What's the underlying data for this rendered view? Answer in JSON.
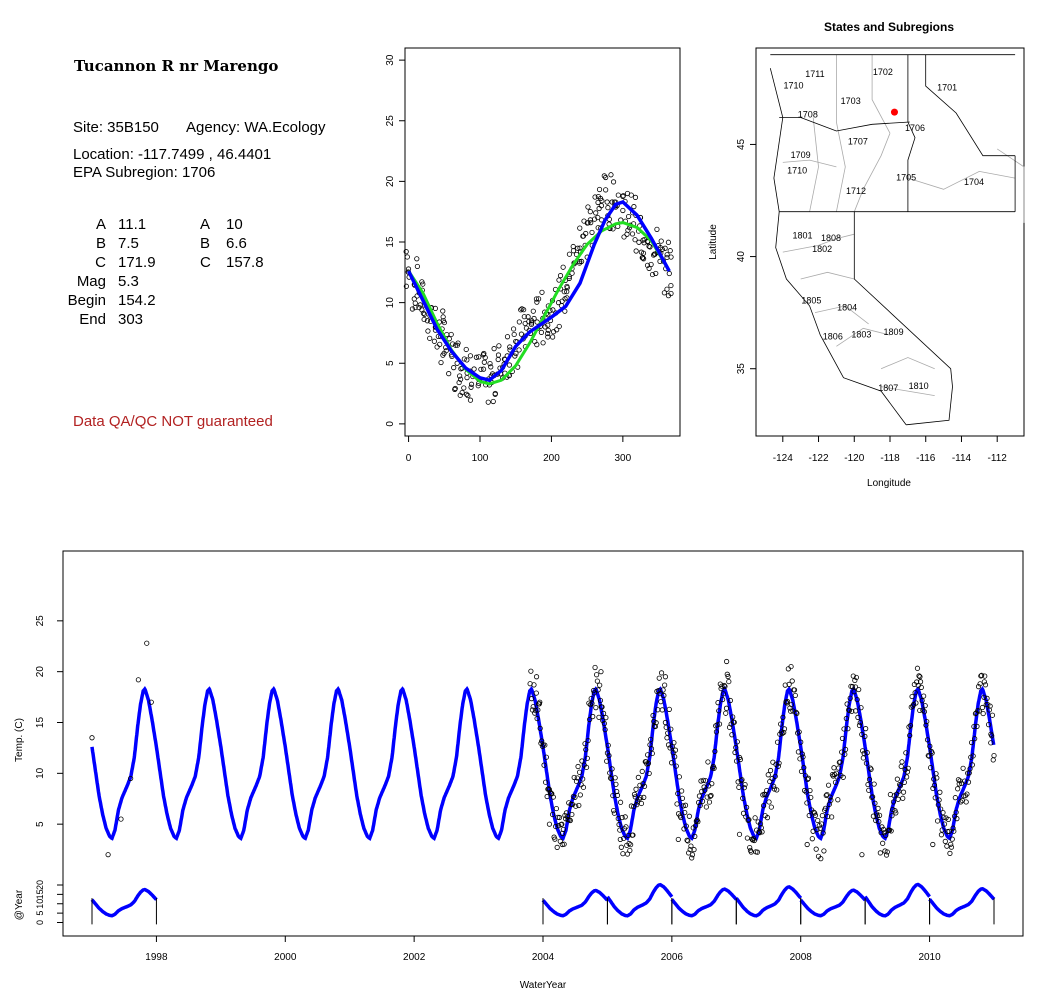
{
  "info": {
    "site_name": "Tucannon R nr Marengo",
    "site_line": "Site: 35B150",
    "agency_line": "Agency: WA.Ecology",
    "location_line": "Location: -117.7499 , 46.4401",
    "subregion_line": "EPA Subregion: 1706",
    "params_left": [
      {
        "label": "A",
        "value": "11.1"
      },
      {
        "label": "B",
        "value": "7.5"
      },
      {
        "label": "C",
        "value": "171.9"
      },
      {
        "label": "Mag",
        "value": "5.3"
      },
      {
        "label": "Begin",
        "value": "154.2"
      },
      {
        "label": "End",
        "value": "303"
      }
    ],
    "params_right": [
      {
        "label": "A",
        "value": "10"
      },
      {
        "label": "B",
        "value": "6.6"
      },
      {
        "label": "C",
        "value": "157.8"
      }
    ],
    "disclaimer": "Data QA/QC NOT guaranteed",
    "disclaimer_color": "#b22222"
  },
  "colors": {
    "fit": "#0000ff",
    "alt_fit": "#22dd22",
    "points": "#000000",
    "site_marker": "#ff0000",
    "region_lines": "#aaaaaa"
  },
  "chart_data": [
    {
      "type": "scatter",
      "xlabel": "",
      "ylabel": "",
      "xlim": [
        -5,
        380
      ],
      "ylim": [
        -1,
        31
      ],
      "xticks": [
        0,
        100,
        200,
        300
      ],
      "yticks": [
        0,
        5,
        10,
        15,
        20,
        25,
        30
      ],
      "series": [
        {
          "kind": "points",
          "x": [
            0,
            8,
            15,
            22,
            30,
            38,
            45,
            52,
            60,
            68,
            75,
            82,
            90,
            98,
            105,
            112,
            120,
            128,
            135,
            142,
            150,
            158,
            165,
            172,
            180,
            188,
            195,
            202,
            210,
            218,
            225,
            232,
            240,
            248,
            255,
            262,
            270,
            278,
            285,
            292,
            300,
            308,
            315,
            322,
            330,
            338,
            345,
            352,
            360,
            365
          ],
          "y": [
            12.5,
            11.5,
            10.8,
            9.8,
            8.9,
            8.0,
            7.2,
            6.3,
            5.7,
            5.0,
            4.6,
            4.2,
            3.9,
            3.7,
            3.6,
            3.7,
            4.0,
            4.6,
            5.3,
            6.1,
            6.8,
            7.4,
            7.9,
            8.2,
            8.4,
            8.7,
            9.0,
            9.4,
            10.0,
            10.9,
            12.0,
            13.2,
            14.5,
            15.7,
            16.6,
            17.4,
            18.0,
            18.3,
            18.3,
            18.0,
            17.6,
            17.1,
            16.5,
            15.9,
            15.2,
            14.6,
            14.0,
            13.4,
            12.8,
            12.4
          ]
        },
        {
          "kind": "fit",
          "x": [
            0,
            20,
            40,
            60,
            80,
            100,
            113,
            130,
            150,
            170,
            180,
            200,
            220,
            240,
            260,
            275,
            290,
            300,
            320,
            340,
            365
          ],
          "y": [
            12.6,
            10.2,
            7.8,
            6.0,
            4.6,
            3.8,
            3.6,
            4.4,
            6.4,
            7.6,
            8.0,
            8.8,
            9.7,
            11.6,
            14.8,
            16.8,
            18.1,
            18.3,
            17.2,
            15.3,
            12.6
          ]
        },
        {
          "kind": "alt_fit",
          "x": [
            0,
            20,
            40,
            60,
            80,
            100,
            113,
            130,
            150,
            170,
            190,
            210,
            230,
            250,
            270,
            290,
            300,
            320,
            340,
            365
          ],
          "y": [
            12.6,
            10.8,
            8.3,
            6.1,
            4.5,
            3.5,
            3.3,
            3.6,
            4.8,
            6.7,
            8.9,
            11.1,
            13.1,
            14.8,
            15.9,
            16.5,
            16.6,
            16.2,
            15.1,
            12.6
          ]
        }
      ]
    },
    {
      "type": "map",
      "title": "States and Subregions",
      "xlabel": "Longitude",
      "ylabel": "Latitude",
      "xlim": [
        -125.5,
        -110.5
      ],
      "ylim": [
        32,
        49.3
      ],
      "xticks": [
        -124,
        -122,
        -120,
        -118,
        -116,
        -114,
        -112
      ],
      "yticks": [
        35,
        40,
        45
      ],
      "site": {
        "lon": -117.7499,
        "lat": 46.4401
      },
      "regions": [
        {
          "label": "1702",
          "lon": -118.4,
          "lat": 48.1
        },
        {
          "label": "1711",
          "lon": -122.2,
          "lat": 48.0
        },
        {
          "label": "1710",
          "lon": -123.4,
          "lat": 47.5
        },
        {
          "label": "1701",
          "lon": -114.8,
          "lat": 47.4
        },
        {
          "label": "1703",
          "lon": -120.2,
          "lat": 46.8
        },
        {
          "label": "1708",
          "lon": -122.6,
          "lat": 46.2
        },
        {
          "label": "1706",
          "lon": -116.6,
          "lat": 45.6
        },
        {
          "label": "1707",
          "lon": -119.8,
          "lat": 45.0
        },
        {
          "label": "1709",
          "lon": -123.0,
          "lat": 44.4
        },
        {
          "label": "1710",
          "lon": -123.2,
          "lat": 43.7
        },
        {
          "label": "1705",
          "lon": -117.1,
          "lat": 43.4
        },
        {
          "label": "1704",
          "lon": -113.3,
          "lat": 43.2
        },
        {
          "label": "1712",
          "lon": -119.9,
          "lat": 42.8
        },
        {
          "label": "1801",
          "lon": -122.9,
          "lat": 40.8
        },
        {
          "label": "1808",
          "lon": -121.3,
          "lat": 40.7
        },
        {
          "label": "1802",
          "lon": -121.8,
          "lat": 40.2
        },
        {
          "label": "1805",
          "lon": -122.4,
          "lat": 37.9
        },
        {
          "label": "1804",
          "lon": -120.4,
          "lat": 37.6
        },
        {
          "label": "1806",
          "lon": -121.2,
          "lat": 36.3
        },
        {
          "label": "1803",
          "lon": -119.6,
          "lat": 36.4
        },
        {
          "label": "1809",
          "lon": -117.8,
          "lat": 36.5
        },
        {
          "label": "1810",
          "lon": -116.4,
          "lat": 34.1
        },
        {
          "label": "1807",
          "lon": -118.1,
          "lat": 34.0
        }
      ]
    },
    {
      "type": "line",
      "xlabel": "",
      "ylabel": "Temp. (C)",
      "xlim": [
        1996.55,
        2011.45
      ],
      "ylim": [
        0,
        30
      ],
      "xticks": [
        1998,
        2000,
        2002,
        2004,
        2006,
        2008,
        2010
      ],
      "yticks": [
        5,
        10,
        15,
        20,
        25
      ],
      "series": [
        {
          "kind": "fit",
          "x_start": 1997.0,
          "x_end": 2011.0
        },
        {
          "kind": "points",
          "x": [
            1997.0,
            1997.25,
            1997.45,
            1997.6,
            1997.72,
            1997.85,
            1997.92,
            2003.9,
            2003.95,
            2004.1,
            2004.3,
            2004.9,
            2005.2,
            2005.9,
            2006.1,
            2006.85,
            2007.05,
            2007.85,
            2008.1,
            2008.85,
            2008.95,
            2009.85,
            2010.05,
            2010.85,
            2010.95
          ],
          "y": [
            13.5,
            2.0,
            5.5,
            9.5,
            19.2,
            22.8,
            17.0,
            19.5,
            17.0,
            5.0,
            3.0,
            20.0,
            3.5,
            19.5,
            3.5,
            21.0,
            4.0,
            20.5,
            3.0,
            18.5,
            2.0,
            19.5,
            3.0,
            19.0,
            13.0
          ]
        }
      ]
    },
    {
      "type": "line",
      "xlabel": "WaterYear",
      "ylabel": "@Year",
      "xlim": [
        1996.55,
        2011.45
      ],
      "ylim": [
        -4,
        28
      ],
      "xticks": [
        1998,
        2000,
        2002,
        2004,
        2006,
        2008,
        2010
      ],
      "yticks": [
        0,
        5,
        10,
        15,
        20
      ],
      "series": [
        {
          "kind": "segments",
          "years": [
            1998,
            2004,
            2005,
            2006,
            2007,
            2008,
            2009,
            2010,
            2011
          ]
        }
      ]
    }
  ]
}
